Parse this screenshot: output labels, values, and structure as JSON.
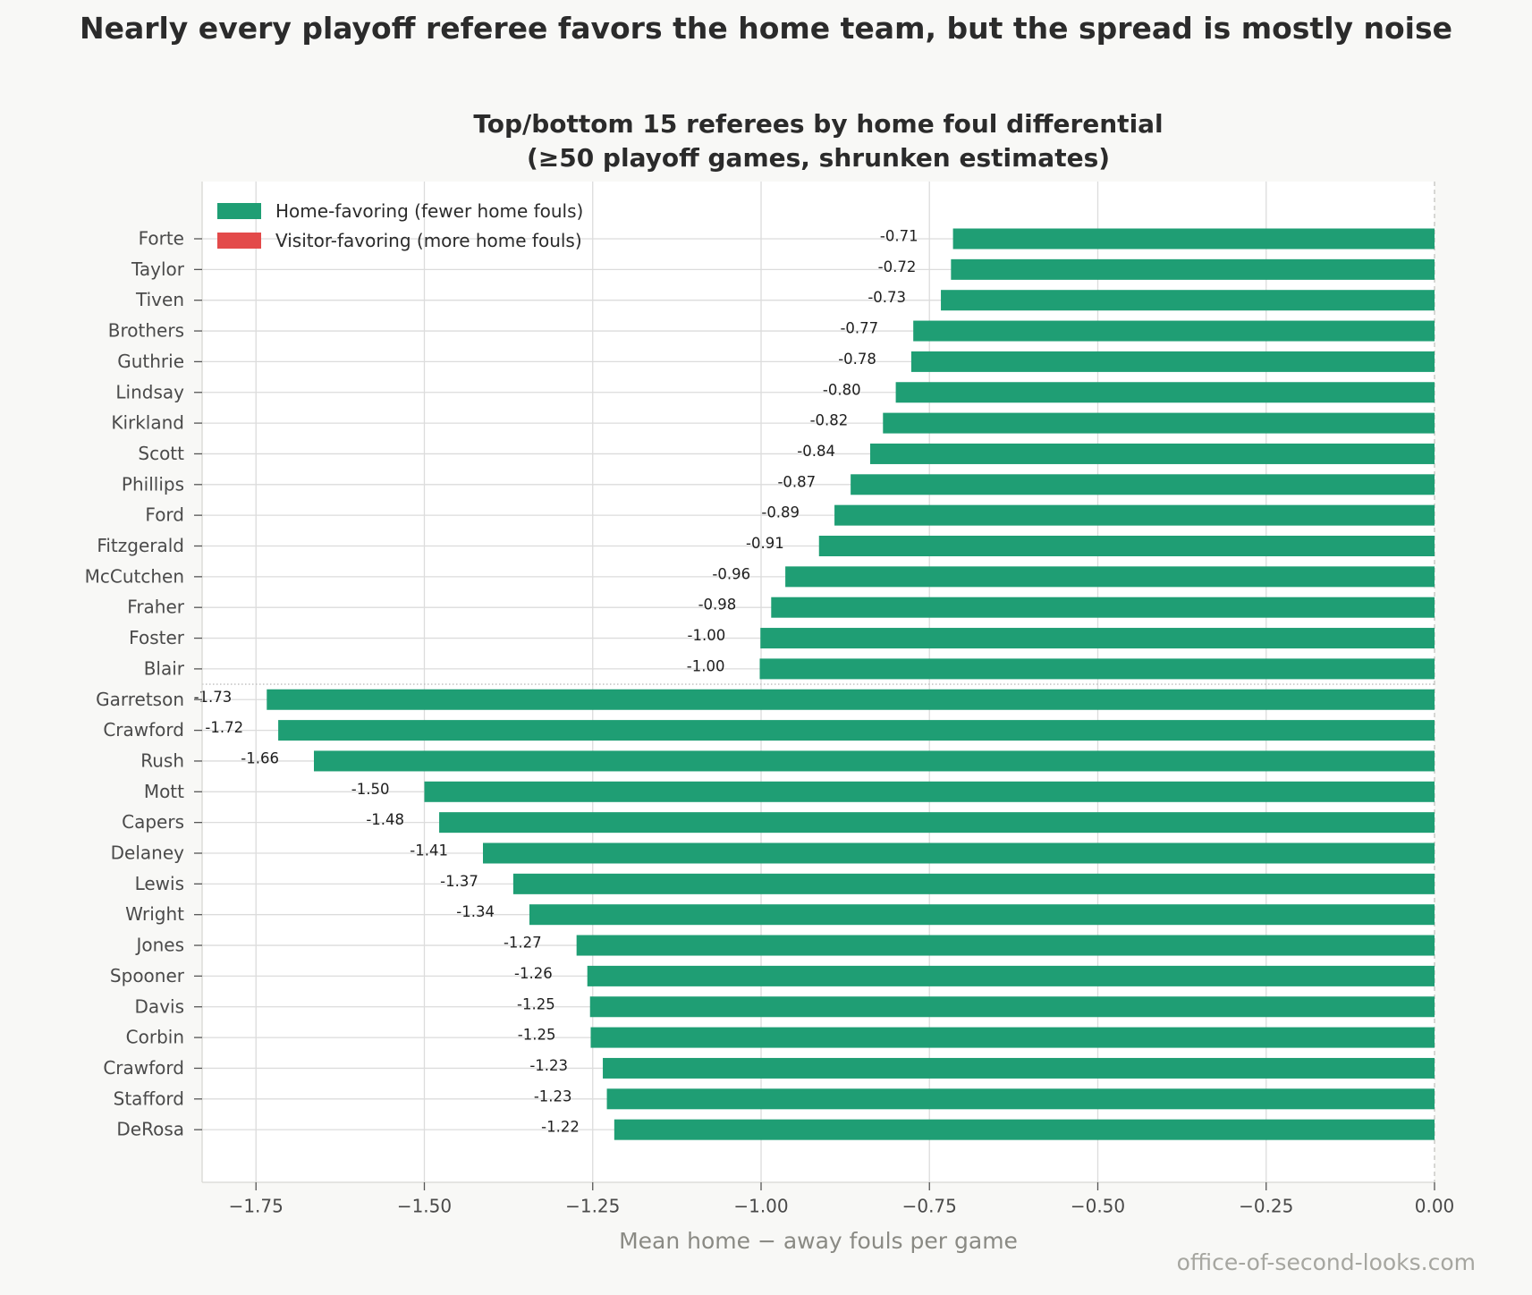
{
  "suptitle": "Nearly every playoff referee favors the home team, but the spread is mostly noise",
  "credit": "office-of-second-looks.com",
  "legend": {
    "home": "Home-favoring (fewer home fouls)",
    "visitor": "Visitor-favoring (more home fouls)"
  },
  "colors": {
    "home": "#1f9e74",
    "visitor": "#e34a4a",
    "grid": "#dcdcdc",
    "background": "#f8f8f6",
    "plot_background": "#ffffff"
  },
  "chart_data": {
    "type": "bar",
    "orientation": "horizontal",
    "title_line1": "Top/bottom 15 referees by home foul differential",
    "title_line2": "(≥50 playoff games, shrunken estimates)",
    "xlabel": "Mean home − away fouls per game",
    "ylabel": "",
    "xlim": [
      -1.83,
      0.0
    ],
    "xticks": [
      -1.75,
      -1.5,
      -1.25,
      -1.0,
      -0.75,
      -0.5,
      -0.25,
      0.0
    ],
    "xtick_labels": [
      "−1.75",
      "−1.50",
      "−1.25",
      "−1.00",
      "−0.75",
      "−0.50",
      "−0.25",
      "0.00"
    ],
    "grid": true,
    "legend_position": "top-left",
    "group_separator_after_index": 14,
    "categories": [
      "Forte",
      "Taylor",
      "Tiven",
      "Brothers",
      "Guthrie",
      "Lindsay",
      "Kirkland",
      "Scott",
      "Phillips",
      "Ford",
      "Fitzgerald",
      "McCutchen",
      "Fraher",
      "Foster",
      "Blair",
      "Garretson",
      "Crawford",
      "Rush",
      "Mott",
      "Capers",
      "Delaney",
      "Lewis",
      "Wright",
      "Jones",
      "Spooner",
      "Davis",
      "Corbin",
      "Crawford",
      "Stafford",
      "DeRosa"
    ],
    "values": [
      -0.715,
      -0.718,
      -0.733,
      -0.774,
      -0.777,
      -0.8,
      -0.819,
      -0.838,
      -0.867,
      -0.891,
      -0.914,
      -0.964,
      -0.985,
      -1.001,
      -1.002,
      -1.734,
      -1.717,
      -1.664,
      -1.5,
      -1.478,
      -1.413,
      -1.368,
      -1.344,
      -1.274,
      -1.258,
      -1.254,
      -1.253,
      -1.235,
      -1.229,
      -1.218
    ],
    "data_labels": [
      "-0.71",
      "-0.72",
      "-0.73",
      "-0.77",
      "-0.78",
      "-0.80",
      "-0.82",
      "-0.84",
      "-0.87",
      "-0.89",
      "-0.91",
      "-0.96",
      "-0.98",
      "-1.00",
      "-1.00",
      "-1.73",
      "-1.72",
      "-1.66",
      "-1.50",
      "-1.48",
      "-1.41",
      "-1.37",
      "-1.34",
      "-1.27",
      "-1.26",
      "-1.25",
      "-1.25",
      "-1.23",
      "-1.23",
      "-1.22"
    ]
  }
}
